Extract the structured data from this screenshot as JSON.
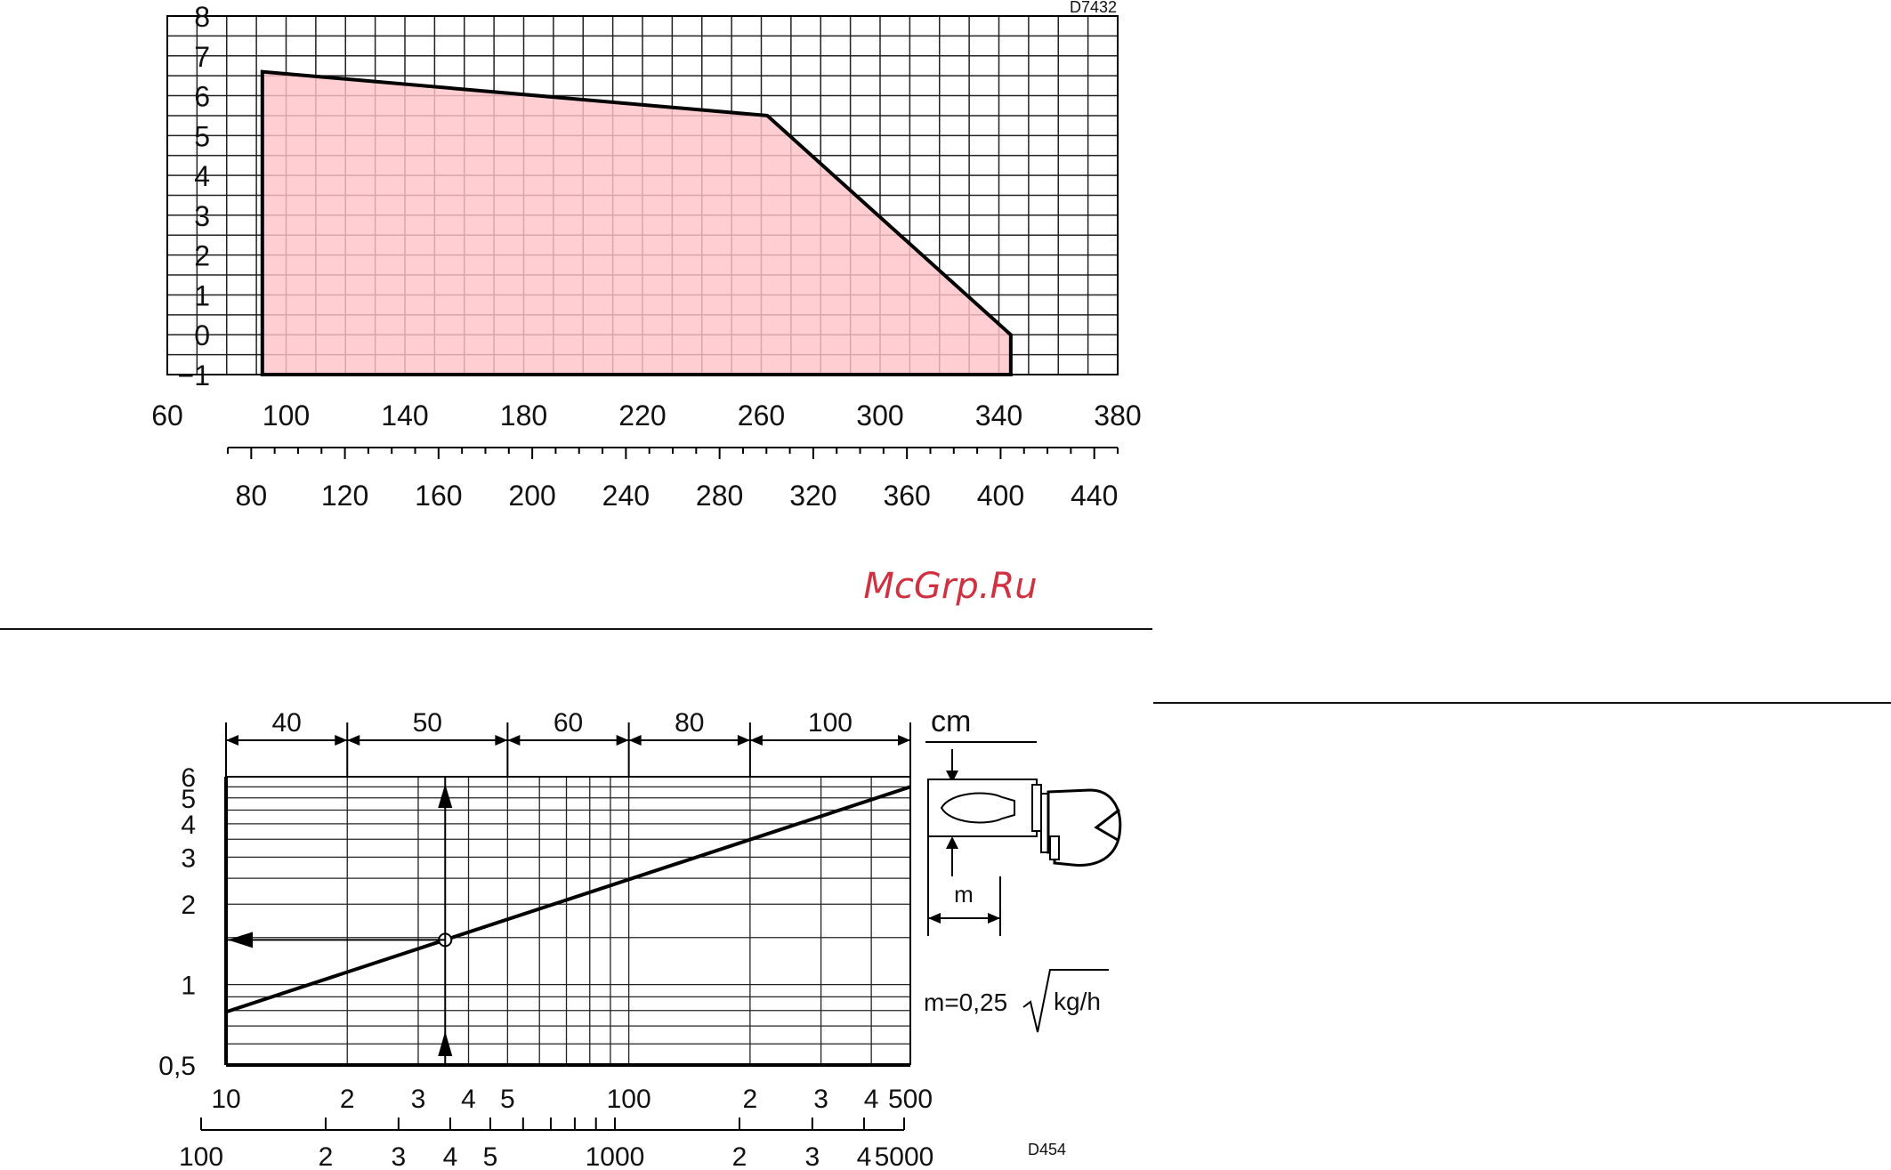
{
  "watermark": "McGrp.Ru",
  "chart_data": [
    {
      "type": "area",
      "id": "top",
      "code": "D7432",
      "y_ticks": [
        "8",
        "7",
        "6",
        "5",
        "4",
        "3",
        "2",
        "1",
        "0",
        "−1"
      ],
      "ylim": [
        -1,
        8
      ],
      "xlim": [
        60,
        380
      ],
      "x_ticks_top": [
        "60",
        "100",
        "140",
        "180",
        "220",
        "260",
        "300",
        "340",
        "380"
      ],
      "xlim_bottom": [
        70,
        450
      ],
      "x_ticks_bottom": [
        "80",
        "120",
        "160",
        "200",
        "240",
        "280",
        "320",
        "360",
        "400",
        "440"
      ],
      "grid": true,
      "fill_color": "#ffc3c8",
      "series": [
        {
          "x": [
            92,
            92,
            262,
            344,
            344
          ],
          "y": [
            -1,
            6.6,
            5.5,
            0,
            -1
          ]
        }
      ]
    },
    {
      "type": "line",
      "id": "bottom",
      "code": "D454",
      "unit_label": "cm",
      "x_scale": "log",
      "y_scale": "log",
      "xlim": [
        10,
        500
      ],
      "ylim": [
        0.5,
        6
      ],
      "x_ticks_top": [
        "10",
        "2",
        "3",
        "4",
        "5",
        "100",
        "2",
        "3",
        "4",
        "500"
      ],
      "x_ticks_bottom": [
        "100",
        "2",
        "3",
        "4",
        "5",
        "1000",
        "2",
        "3",
        "4",
        "5000"
      ],
      "y_ticks": [
        "6",
        "5",
        "4",
        "3",
        "2",
        "1",
        "0,5"
      ],
      "band_labels": [
        "40",
        "50",
        "60",
        "80",
        "100"
      ],
      "grid": true,
      "series": [
        {
          "x": [
            10,
            500
          ],
          "y": [
            0.79,
            5.5
          ]
        }
      ],
      "marked_point": {
        "x": 35,
        "y": 1.47
      },
      "formula": "m=0,25",
      "formula_unit": "kg/h",
      "dim_label": "m"
    }
  ]
}
